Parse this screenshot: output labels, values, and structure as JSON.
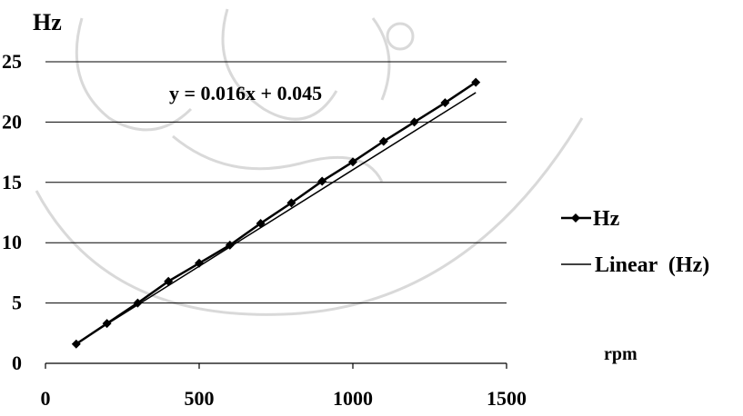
{
  "chart_data": {
    "type": "line",
    "xlabel": "rpm",
    "ylabel": "Hz",
    "xlim": [
      0,
      1500
    ],
    "ylim": [
      0,
      25
    ],
    "x_ticks": [
      "0",
      "500",
      "1000",
      "1500"
    ],
    "y_ticks": [
      "0",
      "5",
      "10",
      "15",
      "20",
      "25"
    ],
    "grid": "horizontal",
    "legend_position": "right",
    "annotation": "y = 0.016x + 0.045",
    "series": [
      {
        "name": "Hz",
        "color": "#000000",
        "marker": "diamond",
        "x": [
          100,
          200,
          300,
          400,
          500,
          600,
          700,
          800,
          900,
          1000,
          1100,
          1200,
          1300,
          1400
        ],
        "y": [
          1.6,
          3.3,
          5.0,
          6.8,
          8.3,
          9.8,
          11.6,
          13.3,
          15.1,
          16.7,
          18.4,
          20.0,
          21.6,
          23.3
        ]
      },
      {
        "name": "Linear (Hz)",
        "color": "#000000",
        "type": "trendline",
        "slope": 0.016,
        "intercept": 0.045
      }
    ],
    "legend": {
      "marker_series_label": "Hz",
      "trend_prefix": "Linear",
      "trend_suffix": "(Hz)"
    }
  }
}
